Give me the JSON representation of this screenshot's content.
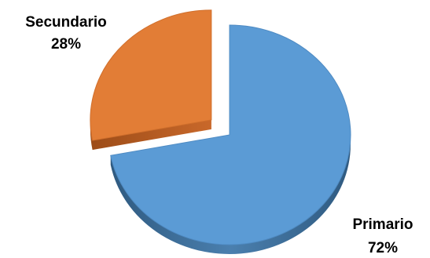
{
  "chart_data": {
    "type": "pie",
    "exploded": true,
    "three_d": true,
    "series": [
      {
        "name": "Primario",
        "value": 72,
        "label": "72%",
        "color": "#5b9bd5",
        "side_color": "#3f6f99"
      },
      {
        "name": "Secundario",
        "value": 28,
        "label": "28%",
        "color": "#e27d36",
        "side_color": "#b45e22"
      }
    ]
  }
}
